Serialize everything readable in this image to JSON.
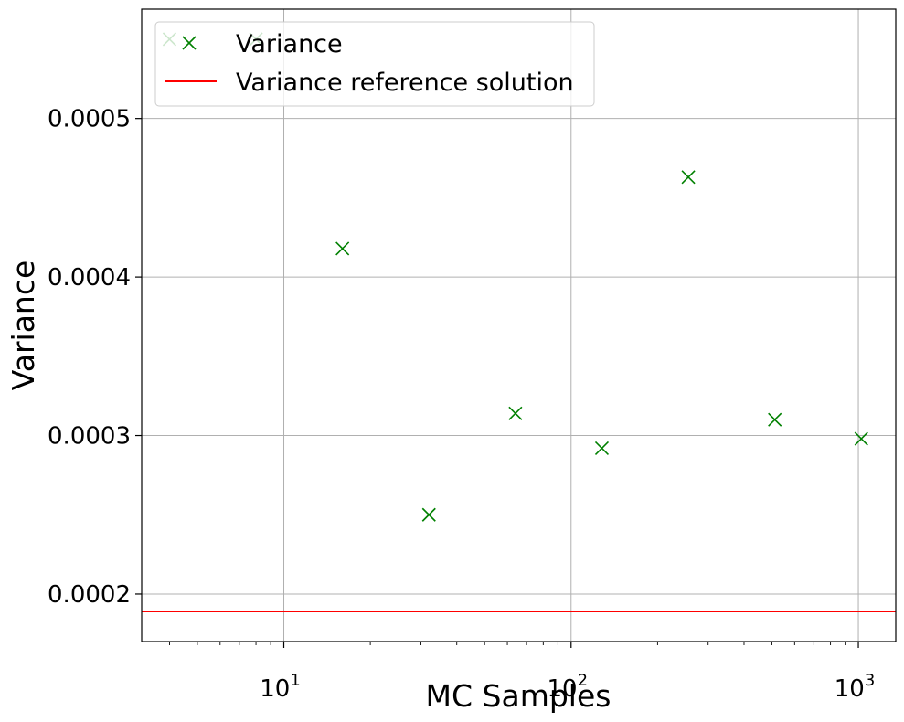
{
  "chart_data": {
    "type": "scatter",
    "xscale": "log",
    "xlabel": "MC Samples",
    "ylabel": "Variance",
    "xlim": [
      3.2,
      1350
    ],
    "ylim": [
      0.00017,
      0.000569
    ],
    "grid": true,
    "legend_position": "top-left",
    "x_ticks": [
      {
        "value": 10,
        "base": "10",
        "exp": "1"
      },
      {
        "value": 100,
        "base": "10",
        "exp": "2"
      },
      {
        "value": 1000,
        "base": "10",
        "exp": "3"
      }
    ],
    "y_ticks": [
      {
        "value": 0.0002,
        "label": "0.0002"
      },
      {
        "value": 0.0003,
        "label": "0.0003"
      },
      {
        "value": 0.0004,
        "label": "0.0004"
      },
      {
        "value": 0.0005,
        "label": "0.0005"
      }
    ],
    "series": [
      {
        "name": "Variance",
        "marker": "x",
        "color": "#008000",
        "points": [
          {
            "x": 4,
            "y": 0.00055
          },
          {
            "x": 8,
            "y": 0.00055
          },
          {
            "x": 16,
            "y": 0.000418
          },
          {
            "x": 32,
            "y": 0.00025
          },
          {
            "x": 64,
            "y": 0.000314
          },
          {
            "x": 128,
            "y": 0.000292
          },
          {
            "x": 256,
            "y": 0.000463
          },
          {
            "x": 512,
            "y": 0.00031
          },
          {
            "x": 1024,
            "y": 0.000298
          }
        ]
      },
      {
        "name": "Variance reference solution",
        "type": "hline",
        "color": "#ff0000",
        "y": 0.000189
      }
    ]
  }
}
